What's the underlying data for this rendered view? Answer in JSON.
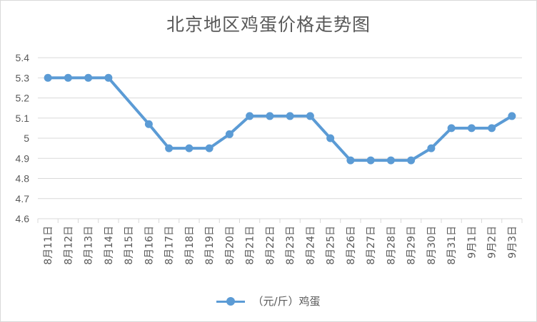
{
  "chart_data": {
    "type": "line",
    "title": "北京地区鸡蛋价格走势图",
    "categories": [
      "8月11日",
      "8月12日",
      "8月13日",
      "8月14日",
      "8月15日",
      "8月16日",
      "8月17日",
      "8月18日",
      "8月19日",
      "8月20日",
      "8月21日",
      "8月22日",
      "8月23日",
      "8月24日",
      "8月25日",
      "8月26日",
      "8月27日",
      "8月28日",
      "8月29日",
      "8月30日",
      "8月31日",
      "9月1日",
      "9月2日",
      "9月3日"
    ],
    "series": [
      {
        "name": "（元/斤）鸡蛋",
        "color": "#5b9bd5",
        "values": [
          5.3,
          5.3,
          5.3,
          5.3,
          null,
          5.07,
          4.95,
          4.95,
          4.95,
          5.02,
          5.11,
          5.11,
          5.11,
          5.11,
          5.0,
          4.89,
          4.89,
          4.89,
          4.89,
          4.95,
          5.05,
          5.05,
          5.05,
          5.11
        ]
      }
    ],
    "xlabel": "",
    "ylabel": "",
    "ylim": [
      4.6,
      5.4
    ],
    "yticks": [
      "4.6",
      "4.7",
      "4.8",
      "4.9",
      "5",
      "5.1",
      "5.2",
      "5.3",
      "5.4"
    ],
    "grid": "horizontal",
    "legend_position": "bottom",
    "gridline_color": "#d9d9d9",
    "text_color": "#595959"
  }
}
